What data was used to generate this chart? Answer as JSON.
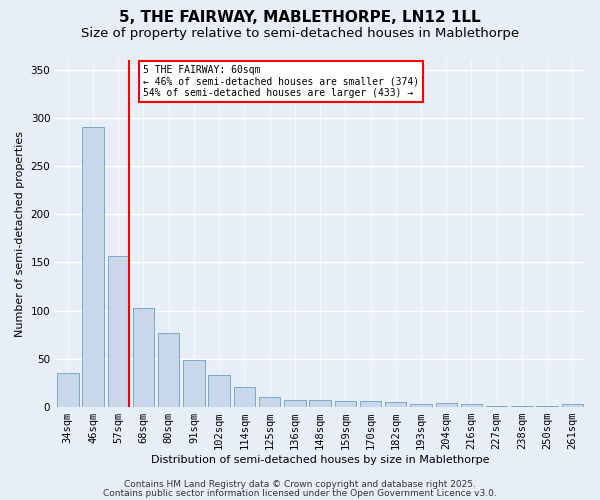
{
  "title1": "5, THE FAIRWAY, MABLETHORPE, LN12 1LL",
  "title2": "Size of property relative to semi-detached houses in Mablethorpe",
  "xlabel": "Distribution of semi-detached houses by size in Mablethorpe",
  "ylabel": "Number of semi-detached properties",
  "categories": [
    "34sqm",
    "46sqm",
    "57sqm",
    "68sqm",
    "80sqm",
    "91sqm",
    "102sqm",
    "114sqm",
    "125sqm",
    "136sqm",
    "148sqm",
    "159sqm",
    "170sqm",
    "182sqm",
    "193sqm",
    "204sqm",
    "216sqm",
    "227sqm",
    "238sqm",
    "250sqm",
    "261sqm"
  ],
  "values": [
    35,
    290,
    157,
    103,
    77,
    49,
    33,
    21,
    10,
    7,
    7,
    6,
    6,
    5,
    3,
    4,
    3,
    1,
    1,
    1,
    3
  ],
  "bar_color": "#c8d8ea",
  "bar_edge_color": "#7aaac8",
  "vline_index": 2,
  "vline_color": "red",
  "annotation_title": "5 THE FAIRWAY: 60sqm",
  "annotation_line1": "← 46% of semi-detached houses are smaller (374)",
  "annotation_line2": "54% of semi-detached houses are larger (433) →",
  "annotation_box_color": "white",
  "annotation_box_edge": "red",
  "ylim": [
    0,
    360
  ],
  "yticks": [
    0,
    50,
    100,
    150,
    200,
    250,
    300,
    350
  ],
  "footer1": "Contains HM Land Registry data © Crown copyright and database right 2025.",
  "footer2": "Contains public sector information licensed under the Open Government Licence v3.0.",
  "bg_color": "#e8eef8",
  "grid_color": "white",
  "title_fontsize": 11,
  "subtitle_fontsize": 9.5,
  "axis_label_fontsize": 8,
  "tick_fontsize": 7.5,
  "footer_fontsize": 6.5
}
